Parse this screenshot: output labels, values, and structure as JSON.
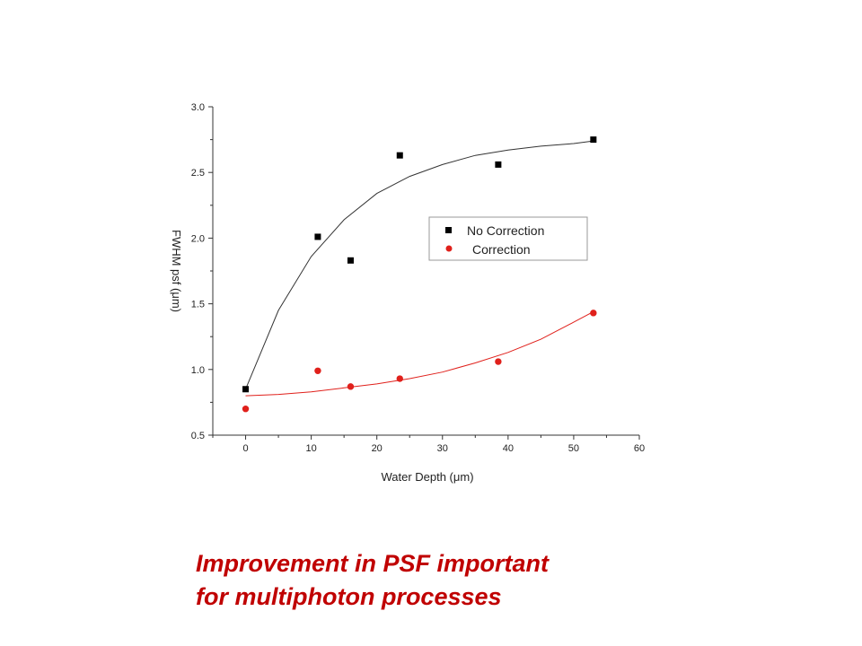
{
  "chart_data": {
    "type": "scatter",
    "xlabel": "Water Depth (μm)",
    "ylabel": "FWHM psf (μm)",
    "xlim": [
      -5,
      60
    ],
    "ylim": [
      0.5,
      3.0
    ],
    "x_ticks": [
      "0",
      "10",
      "20",
      "30",
      "40",
      "50",
      "60"
    ],
    "y_ticks": [
      "0.5",
      "1.0",
      "1.5",
      "2.0",
      "2.5",
      "3.0"
    ],
    "grid": false,
    "legend_position": "center-right",
    "series": [
      {
        "name": "No Correction",
        "marker": "square",
        "color": "#000000",
        "x": [
          0,
          11,
          16,
          23.5,
          38.5,
          53
        ],
        "y": [
          0.85,
          2.01,
          1.83,
          2.63,
          2.56,
          2.75
        ],
        "fit": {
          "x": [
            0,
            5,
            10,
            15,
            20,
            25,
            30,
            35,
            40,
            45,
            50,
            53
          ],
          "y": [
            0.85,
            1.45,
            1.86,
            2.14,
            2.34,
            2.47,
            2.56,
            2.63,
            2.67,
            2.7,
            2.72,
            2.74
          ]
        }
      },
      {
        "name": "Correction",
        "marker": "circle",
        "color": "#e0201b",
        "x": [
          0,
          11,
          16,
          23.5,
          38.5,
          53
        ],
        "y": [
          0.7,
          0.99,
          0.87,
          0.93,
          1.06,
          1.43
        ],
        "fit": {
          "x": [
            0,
            5,
            10,
            15,
            20,
            25,
            30,
            35,
            40,
            45,
            50,
            53
          ],
          "y": [
            0.8,
            0.81,
            0.83,
            0.86,
            0.89,
            0.93,
            0.98,
            1.05,
            1.13,
            1.23,
            1.36,
            1.44
          ]
        }
      }
    ]
  },
  "caption": {
    "line1": "Improvement in PSF important",
    "line2": "for multiphoton processes"
  }
}
